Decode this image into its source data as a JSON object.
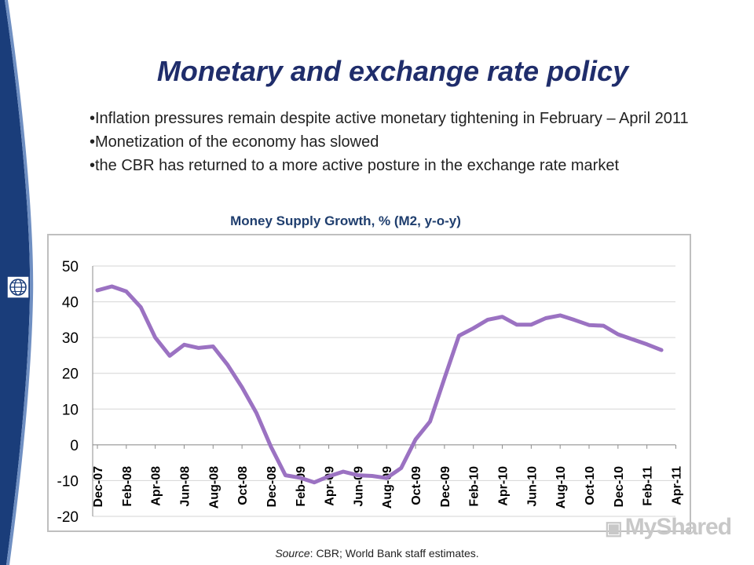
{
  "slide": {
    "title": "Monetary and exchange rate policy",
    "bullets": [
      "•Inflation pressures remain despite active monetary tightening in February – April 2011",
      "•Monetization of the economy has slowed",
      "•the CBR has returned to a more active posture in the exchange rate market"
    ],
    "source_prefix": "Source",
    "source_rest": ": CBR; World Bank staff estimates.",
    "watermark": "MyShared",
    "colors": {
      "title": "#1f2d6b",
      "band": "#1a3d7a",
      "line": "#9b72c2"
    },
    "icons": [
      "world-bank-logo-icon",
      "myshared-logo-icon"
    ]
  },
  "chart_data": {
    "type": "line",
    "title": "Money Supply Growth, % (M2, y-o-y)",
    "xlabel": "",
    "ylabel": "",
    "ylim": [
      -20,
      50
    ],
    "yticks": [
      50,
      40,
      30,
      20,
      10,
      0,
      -10,
      -20
    ],
    "grid": true,
    "legend": "none",
    "x_tick_labels": [
      "Dec-07",
      "Feb-08",
      "Apr-08",
      "Jun-08",
      "Aug-08",
      "Oct-08",
      "Dec-08",
      "Feb-09",
      "Apr-09",
      "Jun-09",
      "Aug-09",
      "Oct-09",
      "Dec-09",
      "Feb-10",
      "Apr-10",
      "Jun-10",
      "Aug-10",
      "Oct-10",
      "Dec-10",
      "Feb-11",
      "Apr-11"
    ],
    "x": [
      "Dec-07",
      "Jan-08",
      "Feb-08",
      "Mar-08",
      "Apr-08",
      "May-08",
      "Jun-08",
      "Jul-08",
      "Aug-08",
      "Sep-08",
      "Oct-08",
      "Nov-08",
      "Dec-08",
      "Jan-09",
      "Feb-09",
      "Mar-09",
      "Apr-09",
      "May-09",
      "Jun-09",
      "Jul-09",
      "Aug-09",
      "Sep-09",
      "Oct-09",
      "Nov-09",
      "Dec-09",
      "Jan-10",
      "Feb-10",
      "Mar-10",
      "Apr-10",
      "May-10",
      "Jun-10",
      "Jul-10",
      "Aug-10",
      "Sep-10",
      "Oct-10",
      "Nov-10",
      "Dec-10",
      "Jan-11",
      "Feb-11",
      "Mar-11"
    ],
    "series": [
      {
        "values": [
          43.2,
          44.3,
          42.9,
          38.5,
          30.0,
          24.9,
          28.0,
          27.1,
          27.5,
          22.4,
          16.1,
          8.9,
          -0.5,
          -8.5,
          -9.2,
          -10.5,
          -8.8,
          -7.5,
          -8.5,
          -8.7,
          -9.3,
          -6.5,
          1.5,
          6.5,
          18.6,
          30.5,
          32.6,
          35.0,
          35.8,
          33.6,
          33.6,
          35.4,
          36.2,
          34.9,
          33.5,
          33.3,
          30.9,
          29.5,
          28.1,
          26.5
        ]
      }
    ]
  }
}
